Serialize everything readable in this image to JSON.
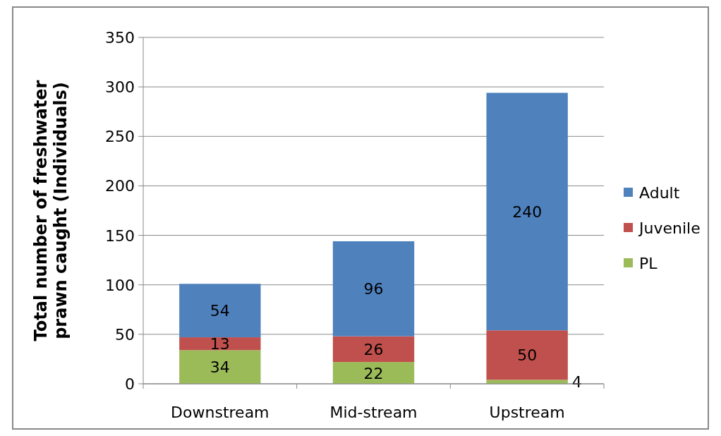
{
  "chart_data": {
    "type": "bar",
    "stacked": true,
    "ylabel": "Total number of freshwater prawn caught (Individuals)",
    "categories": [
      "Downstream",
      "Mid-stream",
      "Upstream"
    ],
    "series": [
      {
        "name": "PL",
        "color": "#9bbb59",
        "values": [
          34,
          22,
          4
        ]
      },
      {
        "name": "Juvenile",
        "color": "#c0504d",
        "values": [
          13,
          26,
          50
        ]
      },
      {
        "name": "Adult",
        "color": "#4f81bd",
        "values": [
          54,
          96,
          240
        ]
      }
    ],
    "ylim": [
      0,
      350
    ],
    "yticks": [
      0,
      50,
      100,
      150,
      200,
      250,
      300,
      350
    ],
    "grid": "y",
    "legend": "right",
    "data_labels": true
  }
}
